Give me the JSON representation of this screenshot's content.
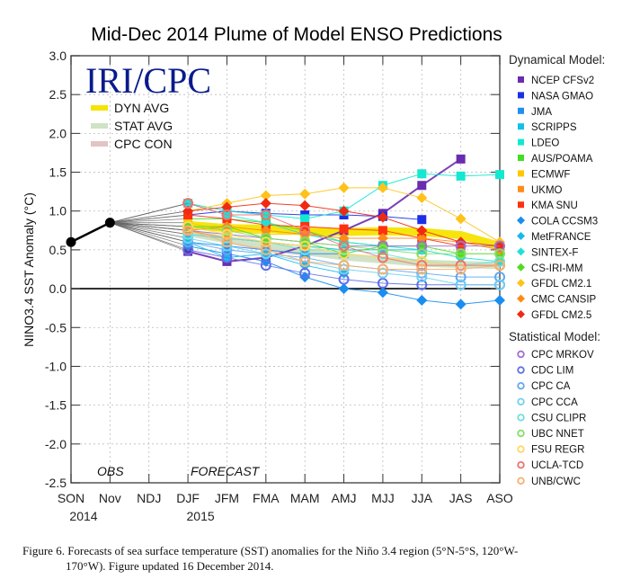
{
  "chart_data": {
    "type": "line",
    "title": "Mid-Dec 2014 Plume of Model ENSO Predictions",
    "xlabel": "",
    "ylabel": "NINO3.4 SST Anomaly (°C)",
    "ylim": [
      -2.5,
      3.0
    ],
    "yticks": [
      "3.0",
      "2.5",
      "2.0",
      "1.5",
      "1.0",
      "0.5",
      "0.0",
      "-0.5",
      "-1.0",
      "-1.5",
      "-2.0",
      "-2.5"
    ],
    "ytick_values": [
      3.0,
      2.5,
      2.0,
      1.5,
      1.0,
      0.5,
      0.0,
      -0.5,
      -1.0,
      -1.5,
      -2.0,
      -2.5
    ],
    "categories": [
      "SON",
      "Nov",
      "NDJ",
      "DJF",
      "JFM",
      "FMA",
      "MAM",
      "AMJ",
      "MJJ",
      "JJA",
      "JAS",
      "ASO"
    ],
    "year_labels": [
      {
        "at": "SON",
        "text": "2014"
      },
      {
        "at": "DJF",
        "text": "2015"
      }
    ],
    "grid": true,
    "annotations": {
      "obs": "OBS",
      "forecast": "FORECAST",
      "logo": "IRI/CPC"
    },
    "forecast_categories": [
      "DJF",
      "JFM",
      "FMA",
      "MAM",
      "AMJ",
      "MJJ",
      "JJA",
      "JAS",
      "ASO"
    ],
    "observed": {
      "name": "Observed",
      "categories": [
        "SON",
        "Nov"
      ],
      "values": [
        0.6,
        0.85
      ],
      "color": "#000000"
    },
    "averages": [
      {
        "name": "DYN AVG",
        "color": "#f5e400",
        "values": [
          0.82,
          0.78,
          0.77,
          0.74,
          0.73,
          0.74,
          0.73,
          0.69,
          0.55
        ]
      },
      {
        "name": "STAT AVG",
        "color": "#cfe3c6",
        "values": [
          0.72,
          0.63,
          0.56,
          0.48,
          0.41,
          0.37,
          0.33,
          0.31,
          0.3
        ]
      },
      {
        "name": "CPC CON",
        "color": "#e3c3c3",
        "values": [
          0.72,
          0.62,
          0.52,
          0.46,
          0.42,
          0.38,
          0.33,
          0.31,
          0.29
        ]
      }
    ],
    "legend": {
      "dynamical_heading": "Dynamical Model:",
      "statistical_heading": "Statistical Model:",
      "placement": "right"
    },
    "dynamical_models": [
      {
        "name": "NCEP CFSv2",
        "marker": "square",
        "color": "#6a2cb0",
        "values": [
          0.48,
          0.35,
          0.4,
          0.55,
          0.75,
          0.97,
          1.33,
          1.67,
          null
        ]
      },
      {
        "name": "NASA GMAO",
        "marker": "square",
        "color": "#1a30e8",
        "values": [
          0.95,
          1.0,
          0.97,
          0.95,
          0.95,
          0.93,
          0.89,
          null,
          null
        ]
      },
      {
        "name": "JMA",
        "marker": "square",
        "color": "#1e90f0",
        "values": [
          0.6,
          0.55,
          0.5,
          0.45,
          0.45,
          null,
          null,
          null,
          null
        ]
      },
      {
        "name": "SCRIPPS",
        "marker": "square",
        "color": "#12c0e8",
        "values": [
          0.7,
          0.65,
          0.6,
          0.55,
          0.5,
          0.5,
          0.5,
          null,
          null
        ]
      },
      {
        "name": "LDEO",
        "marker": "square",
        "color": "#14e8d0",
        "values": [
          1.1,
          1.0,
          0.95,
          0.9,
          1.0,
          1.33,
          1.48,
          1.45,
          1.47
        ]
      },
      {
        "name": "AUS/POAMA",
        "marker": "square",
        "color": "#44dd22",
        "values": [
          0.9,
          0.9,
          0.85,
          0.75,
          0.6,
          0.55,
          null,
          null,
          null
        ]
      },
      {
        "name": "ECMWF",
        "marker": "square",
        "color": "#ffc800",
        "values": [
          0.85,
          0.75,
          0.7,
          0.7,
          null,
          null,
          null,
          null,
          null
        ]
      },
      {
        "name": "UKMO",
        "marker": "square",
        "color": "#ff8c1a",
        "values": [
          0.75,
          0.65,
          0.6,
          0.55,
          null,
          null,
          null,
          null,
          null
        ]
      },
      {
        "name": "KMA SNU",
        "marker": "square",
        "color": "#ff3010",
        "values": [
          0.95,
          0.9,
          0.82,
          0.8,
          0.77,
          0.75,
          0.65,
          0.55,
          null
        ]
      },
      {
        "name": "COLA CCSM3",
        "marker": "diamond",
        "color": "#1a8ef0",
        "values": [
          0.55,
          0.45,
          0.35,
          0.15,
          0.0,
          -0.05,
          -0.15,
          -0.2,
          -0.15
        ]
      },
      {
        "name": "MetFRANCE",
        "marker": "diamond",
        "color": "#18b8ee",
        "values": [
          0.6,
          0.4,
          0.45,
          0.3,
          0.2,
          null,
          null,
          null,
          null
        ]
      },
      {
        "name": "SINTEX-F",
        "marker": "diamond",
        "color": "#20e0d8",
        "values": [
          1.1,
          0.95,
          0.85,
          0.7,
          0.6,
          0.55,
          0.5,
          0.4,
          0.35
        ]
      },
      {
        "name": "CS-IRI-MM",
        "marker": "diamond",
        "color": "#50dd20",
        "values": [
          0.8,
          0.8,
          0.65,
          0.6,
          0.45,
          0.55,
          0.55,
          0.45,
          0.45
        ]
      },
      {
        "name": "GFDL CM2.1",
        "marker": "diamond",
        "color": "#ffc21a",
        "values": [
          1.0,
          1.1,
          1.2,
          1.22,
          1.3,
          1.3,
          1.17,
          0.9,
          0.6
        ]
      },
      {
        "name": "CMC CANSIP",
        "marker": "diamond",
        "color": "#ff8a14",
        "values": [
          0.75,
          0.8,
          0.75,
          0.7,
          0.65,
          0.65,
          0.65,
          0.6,
          0.5
        ]
      },
      {
        "name": "GFDL CM2.5",
        "marker": "diamond",
        "color": "#f02a12",
        "values": [
          1.0,
          1.05,
          1.1,
          1.07,
          1.0,
          0.92,
          0.75,
          0.6,
          0.55
        ]
      }
    ],
    "statistical_models": [
      {
        "name": "CPC MRKOV",
        "marker": "circle",
        "color": "#a070d0",
        "values": [
          0.75,
          0.7,
          0.65,
          0.6,
          0.55,
          0.55,
          0.55,
          0.55,
          0.55
        ]
      },
      {
        "name": "CDC LIM",
        "marker": "circle",
        "color": "#6070e8",
        "values": [
          0.5,
          0.4,
          0.3,
          0.2,
          0.12,
          0.07,
          0.05,
          0.05,
          0.05
        ]
      },
      {
        "name": "CPC CA",
        "marker": "circle",
        "color": "#60a8f0",
        "values": [
          0.6,
          0.5,
          0.45,
          0.4,
          0.3,
          0.25,
          0.2,
          0.15,
          0.15
        ]
      },
      {
        "name": "CPC CCA",
        "marker": "circle",
        "color": "#70d0f0",
        "values": [
          0.65,
          0.55,
          0.45,
          0.35,
          0.25,
          0.2,
          0.15,
          0.05,
          0.05
        ]
      },
      {
        "name": "CSU CLIPR",
        "marker": "circle",
        "color": "#70e0d8",
        "values": [
          0.7,
          0.65,
          0.6,
          0.5,
          0.5,
          0.45,
          0.35,
          0.3,
          0.35
        ]
      },
      {
        "name": "UBC NNET",
        "marker": "circle",
        "color": "#88dd66",
        "values": [
          0.8,
          0.75,
          0.65,
          0.6,
          0.55,
          0.5,
          0.45,
          0.45,
          0.45
        ]
      },
      {
        "name": "FSU REGR",
        "marker": "circle",
        "color": "#ffd860",
        "values": [
          0.8,
          0.7,
          0.6,
          0.55,
          0.45,
          0.4,
          0.35,
          0.3,
          0.3
        ]
      },
      {
        "name": "UCLA-TCD",
        "marker": "circle",
        "color": "#f07070",
        "values": [
          1.1,
          0.95,
          0.95,
          0.75,
          0.55,
          0.4,
          0.3,
          0.3,
          0.3
        ]
      },
      {
        "name": "UNB/CWC",
        "marker": "circle",
        "color": "#f8b070",
        "values": [
          0.75,
          0.6,
          0.5,
          0.35,
          0.3,
          0.25,
          0.25,
          0.25,
          0.3
        ]
      }
    ]
  },
  "caption": {
    "line1": "Figure 6. Forecasts of sea surface temperature (SST) anomalies for the Niño 3.4 region (5°N-5°S, 120°W-",
    "line2": "170°W).  Figure updated 16 December 2014."
  }
}
